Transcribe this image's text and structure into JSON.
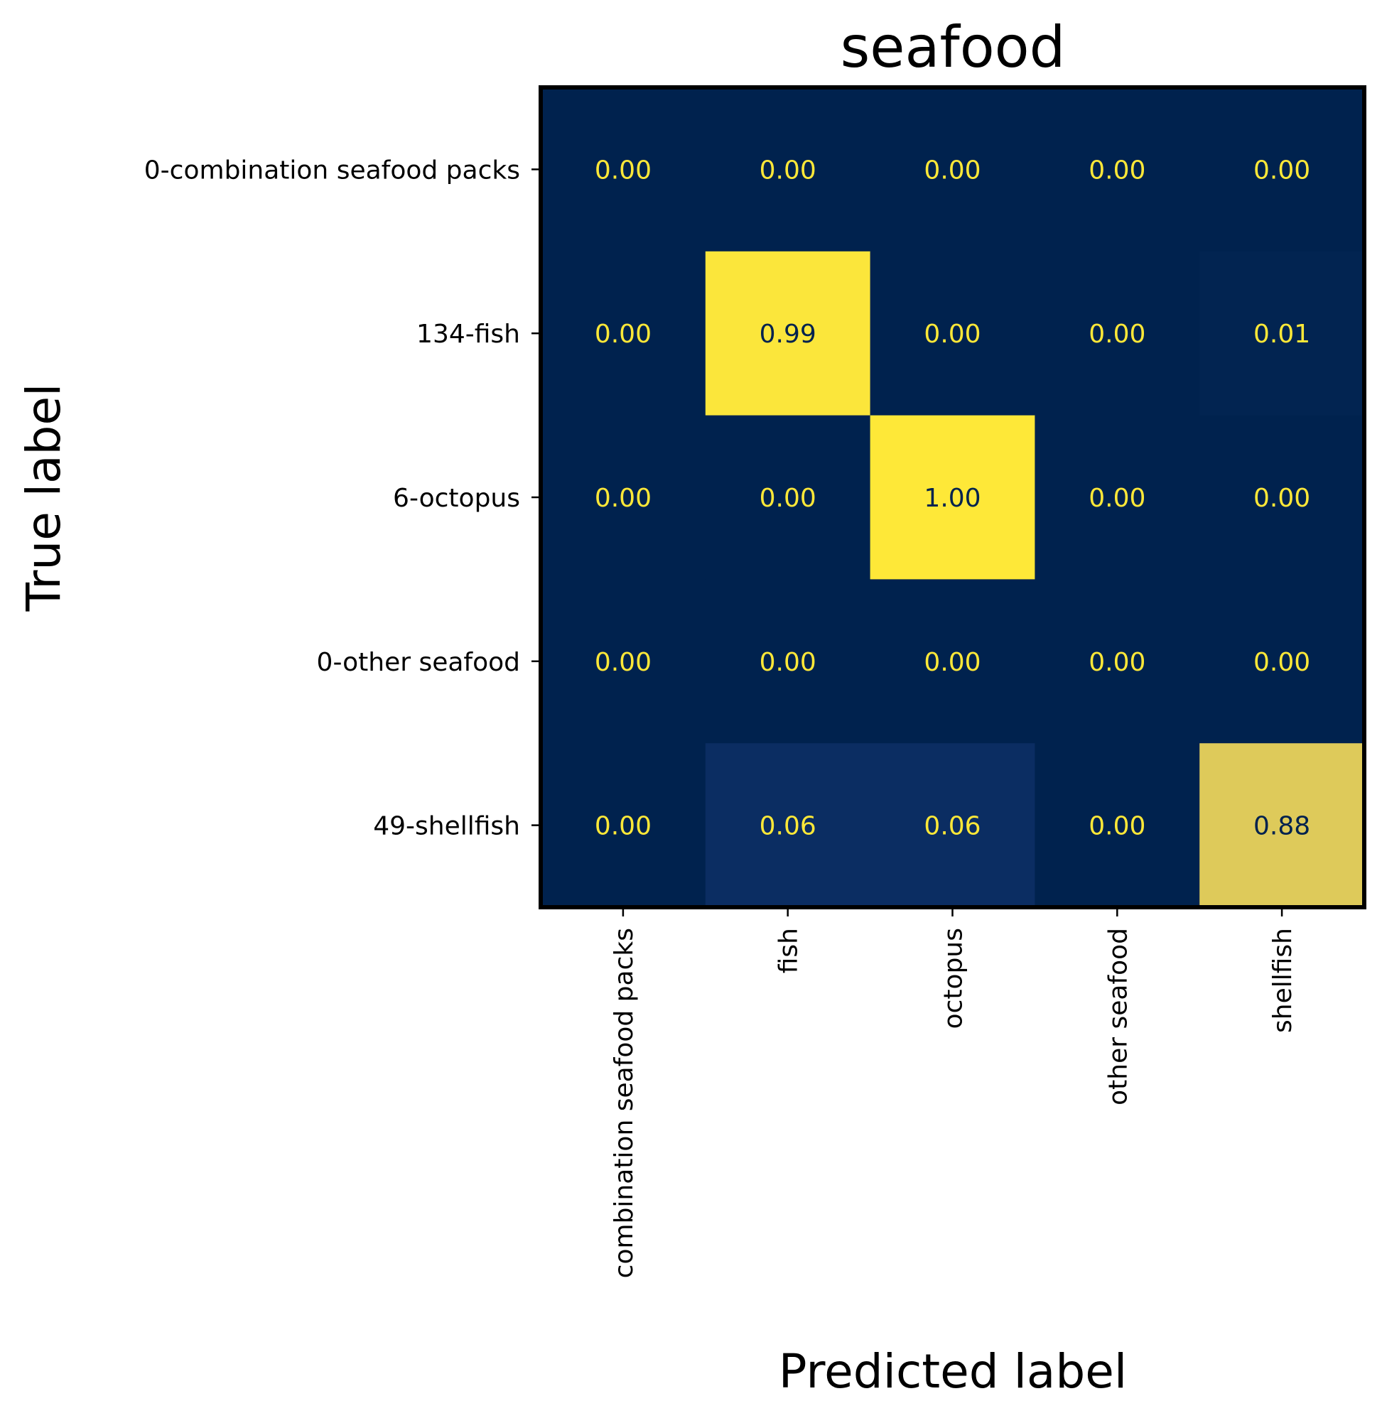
{
  "chart_data": {
    "type": "heatmap",
    "title": "seafood",
    "xlabel": "Predicted label",
    "ylabel": "True label",
    "x_categories": [
      "combination seafood packs",
      "fish",
      "octopus",
      "other seafood",
      "shellfish"
    ],
    "y_categories": [
      "0-combination seafood packs",
      "134-fish",
      "6-octopus",
      "0-other seafood",
      "49-shellfish"
    ],
    "values": [
      [
        0.0,
        0.0,
        0.0,
        0.0,
        0.0
      ],
      [
        0.0,
        0.99,
        0.0,
        0.0,
        0.01
      ],
      [
        0.0,
        0.0,
        1.0,
        0.0,
        0.0
      ],
      [
        0.0,
        0.0,
        0.0,
        0.0,
        0.0
      ],
      [
        0.0,
        0.06,
        0.06,
        0.0,
        0.88
      ]
    ],
    "value_labels": [
      [
        "0.00",
        "0.00",
        "0.00",
        "0.00",
        "0.00"
      ],
      [
        "0.00",
        "0.99",
        "0.00",
        "0.00",
        "0.01"
      ],
      [
        "0.00",
        "0.00",
        "1.00",
        "0.00",
        "0.00"
      ],
      [
        "0.00",
        "0.00",
        "0.00",
        "0.00",
        "0.00"
      ],
      [
        "0.00",
        "0.06",
        "0.06",
        "0.00",
        "0.88"
      ]
    ],
    "value_range": [
      0,
      1
    ],
    "colormap": "cividis",
    "colors": {
      "low": "#00224e",
      "high": "#fee838",
      "text_on_dark": "#fee838",
      "text_on_light": "#00224e",
      "frame": "#000000"
    },
    "x_tick_rotation_deg": 90,
    "grid": false,
    "legend": "none"
  }
}
